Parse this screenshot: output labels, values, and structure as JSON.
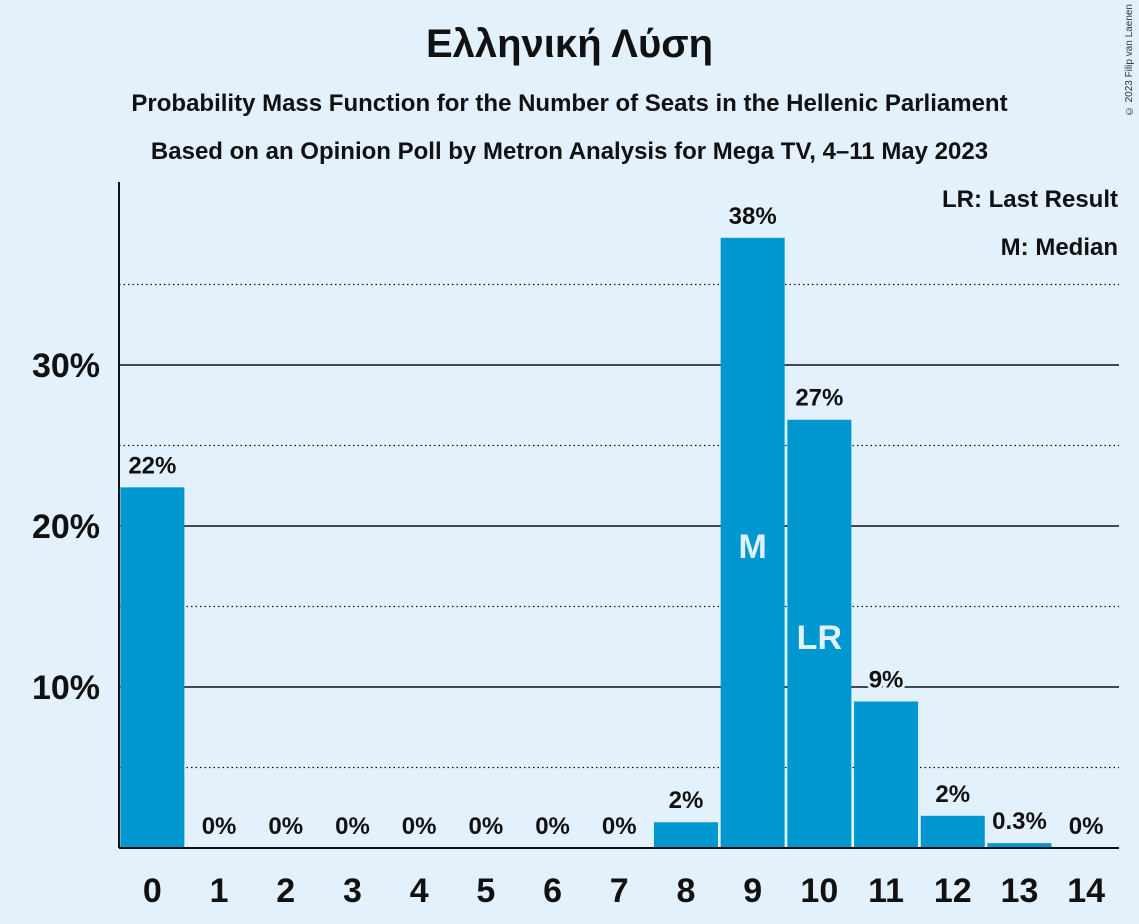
{
  "title": "Ελληνική Λύση",
  "subtitle_1": "Probability Mass Function for the Number of Seats in the Hellenic Parliament",
  "subtitle_2": "Based on an Opinion Poll by Metron Analysis for Mega TV, 4–11 May 2023",
  "copyright": "© 2023 Filip van Laenen",
  "legend": {
    "last_result": "LR: Last Result",
    "median": "M: Median"
  },
  "colors": {
    "bar": "#0096d0",
    "background": "#e3f1fd"
  },
  "chart_data": {
    "type": "bar",
    "categories": [
      "0",
      "1",
      "2",
      "3",
      "4",
      "5",
      "6",
      "7",
      "8",
      "9",
      "10",
      "11",
      "12",
      "13",
      "14"
    ],
    "values": [
      22.4,
      0,
      0,
      0,
      0,
      0,
      0,
      0,
      1.6,
      37.9,
      26.6,
      9.1,
      2.0,
      0.3,
      0
    ],
    "data_labels": [
      "22%",
      "0%",
      "0%",
      "0%",
      "0%",
      "0%",
      "0%",
      "0%",
      "2%",
      "38%",
      "27%",
      "9%",
      "2%",
      "0.3%",
      "0%"
    ],
    "median_category": "9",
    "median_marker": "M",
    "last_result_category": "10",
    "last_result_marker": "LR",
    "ylim": [
      0,
      41.3
    ],
    "yticks_major": [
      10,
      20,
      30
    ],
    "ytick_labels": [
      "10%",
      "20%",
      "30%"
    ],
    "yticks_minor": [
      5,
      15,
      25,
      35
    ],
    "grid": true
  }
}
